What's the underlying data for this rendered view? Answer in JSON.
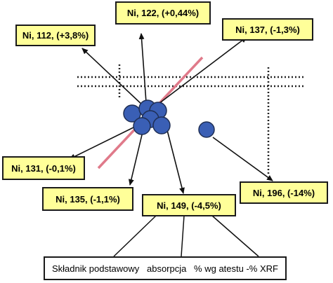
{
  "colors": {
    "label_fill": "#ffff99",
    "legend_fill": "#ffffff",
    "point_fill": "#3a5fb5",
    "point_stroke": "#1f2f55",
    "trend_line": "#e07a8a",
    "grid_dotted": "#222222",
    "arrow": "#111111"
  },
  "labels": [
    {
      "id": "ni-112",
      "text": "Ni, 112, (+3,8%)"
    },
    {
      "id": "ni-122",
      "text": "Ni, 122, (+0,44%)"
    },
    {
      "id": "ni-137",
      "text": "Ni, 137, (-1,3%)"
    },
    {
      "id": "ni-131",
      "text": "Ni, 131, (-0,1%)"
    },
    {
      "id": "ni-135",
      "text": "Ni, 135, (-1,1%)"
    },
    {
      "id": "ni-149",
      "text": "Ni, 149, (-4,5%)"
    },
    {
      "id": "ni-196",
      "text": "Ni, 196, (-14%)"
    }
  ],
  "legend": {
    "item1": "Składnik podstawowy",
    "item2": "absorpcja",
    "item3": "% wg atestu -% XRF"
  }
}
